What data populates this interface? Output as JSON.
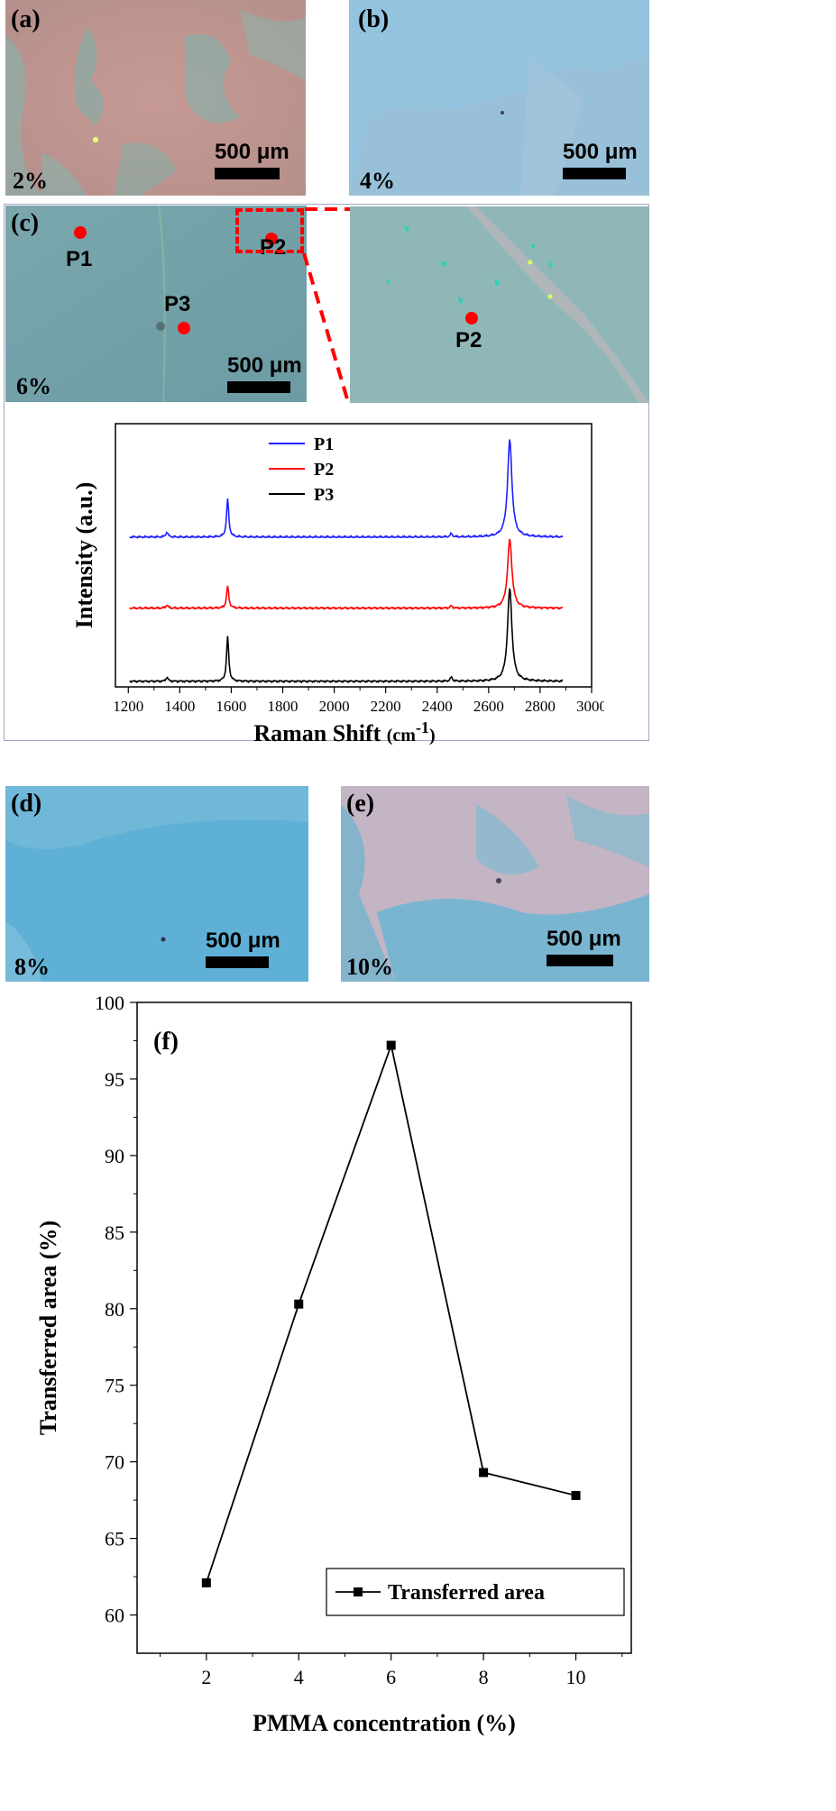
{
  "panels": {
    "a": {
      "label": "(a)",
      "concentration": "2%",
      "scalebar": "500 μm"
    },
    "b": {
      "label": "(b)",
      "concentration": "4%",
      "scalebar": "500 μm"
    },
    "c": {
      "label": "(c)",
      "concentration": "6%",
      "scalebar": "500 μm",
      "points": [
        "P1",
        "P2",
        "P3"
      ],
      "inset_point": "P2"
    },
    "d": {
      "label": "(d)",
      "concentration": "8%",
      "scalebar": "500 μm"
    },
    "e": {
      "label": "(e)",
      "concentration": "10%",
      "scalebar": "500 μm"
    },
    "f": {
      "label": "(f)"
    }
  },
  "colors": {
    "p1": "#1f1fff",
    "p2": "#ff0000",
    "p3": "#000000",
    "marker": "#ff0000"
  },
  "chart_data": [
    {
      "type": "line",
      "panel": "c",
      "xlabel": "Raman Shift (cm-1)",
      "ylabel": "Intensity (a.u.)",
      "xlim": [
        1150,
        3000
      ],
      "x_ticks": [
        1200,
        1400,
        1600,
        1800,
        2000,
        2200,
        2400,
        2600,
        2800,
        3000
      ],
      "y_ticks": [],
      "legend_position": "top-center",
      "series": [
        {
          "name": "P1",
          "color": "#1f1fff",
          "baseline": 3.6,
          "peaks": [
            {
              "x": 1350,
              "h": 0.12
            },
            {
              "x": 1586,
              "h": 0.95
            },
            {
              "x": 2455,
              "h": 0.08
            },
            {
              "x": 2682,
              "h": 2.4
            }
          ]
        },
        {
          "name": "P2",
          "color": "#ff0000",
          "baseline": 1.85,
          "peaks": [
            {
              "x": 1350,
              "h": 0.08
            },
            {
              "x": 1586,
              "h": 0.55
            },
            {
              "x": 2455,
              "h": 0.05
            },
            {
              "x": 2682,
              "h": 1.7
            }
          ]
        },
        {
          "name": "P3",
          "color": "#000000",
          "baseline": 0.05,
          "peaks": [
            {
              "x": 1350,
              "h": 0.1
            },
            {
              "x": 1586,
              "h": 1.1
            },
            {
              "x": 2455,
              "h": 0.1
            },
            {
              "x": 2682,
              "h": 2.3
            }
          ]
        }
      ]
    },
    {
      "type": "line",
      "panel": "f",
      "xlabel": "PMMA concentration (%)",
      "ylabel": "Transferred area (%)",
      "xlim": [
        0.5,
        11.2
      ],
      "ylim": [
        57.5,
        100
      ],
      "x_ticks": [
        2,
        4,
        6,
        8,
        10
      ],
      "y_ticks": [
        60,
        65,
        70,
        75,
        80,
        85,
        90,
        95,
        100
      ],
      "legend_position": "bottom-right",
      "series": [
        {
          "name": "Transferred area",
          "x": [
            2,
            4,
            6,
            8,
            10
          ],
          "y": [
            62.1,
            80.3,
            97.2,
            69.3,
            67.8
          ]
        }
      ]
    }
  ]
}
